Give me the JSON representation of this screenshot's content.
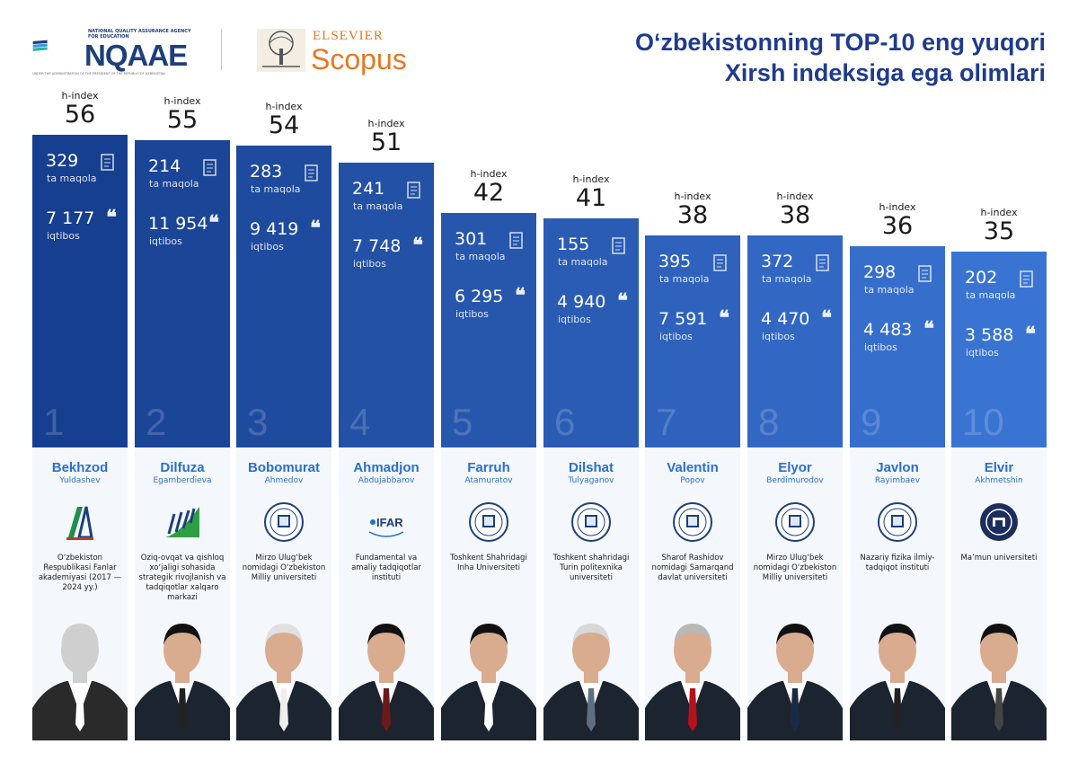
{
  "header": {
    "nqaae_small": "NATIONAL QUALITY ASSURANCE AGENCY FOR EDUCATION",
    "nqaae_name": "NQAAE",
    "nqaae_under": "UNDER THE ADMINISTRATION OF THE PRESIDENT OF THE REPUBLIC OF UZBEKISTAN",
    "elsevier": "ELSEVIER",
    "scopus": "Scopus",
    "title_line1": "O‘zbekistonning TOP-10 eng yuqori",
    "title_line2": "Xirsh indeksiga ega olimlari"
  },
  "labels": {
    "hindex": "h-index",
    "articles": "ta maqola",
    "citations": "iqtibos"
  },
  "colors": {
    "bar_dark": "#173f8f",
    "bar_light": "#3a74d2",
    "name_blue": "#2b70c9",
    "title_blue": "#1f3b8a",
    "card_bg": "#f4f7fb"
  },
  "chart_data": {
    "type": "bar",
    "title": "O‘zbekistonning TOP-10 eng yuqori Xirsh indeksiga ega olimlari",
    "categories": [
      "1",
      "2",
      "3",
      "4",
      "5",
      "6",
      "7",
      "8",
      "9",
      "10"
    ],
    "series": [
      {
        "name": "h-index",
        "values": [
          56,
          55,
          54,
          51,
          42,
          41,
          38,
          38,
          36,
          35
        ]
      }
    ],
    "ylim": [
      0,
      56
    ],
    "grid": false,
    "xlabel": "",
    "ylabel": ""
  },
  "scientists": [
    {
      "rank": "1",
      "hindex": "56",
      "articles": "329",
      "citations": "7 177",
      "first": "Bekhzod",
      "last": "Yuldashev",
      "inst": "O‘zbekiston Respublikasi Fanlar akademiyasi (2017 — 2024 yy.)",
      "emblem": "fa-academy-icon"
    },
    {
      "rank": "2",
      "hindex": "55",
      "articles": "214",
      "citations": "11 954",
      "first": "Dilfuza",
      "last": "Egamberdieva",
      "inst": "Oziq-ovqat va qishloq xo‘jaligi sohasida strategik rivojlanish va tadqiqotlar xalqaro markazi",
      "emblem": "agro-center-icon"
    },
    {
      "rank": "3",
      "hindex": "54",
      "articles": "283",
      "citations": "9 419",
      "first": "Bobomurat",
      "last": "Ahmedov",
      "inst": "Mirzo Ulug‘bek nomidagi O‘zbekiston Milliy universiteti",
      "emblem": "university-seal-icon"
    },
    {
      "rank": "4",
      "hindex": "51",
      "articles": "241",
      "citations": "7 748",
      "first": "Ahmadjon",
      "last": "Abdujabbarov",
      "inst": "Fundamental va amaliy tadqiqotlar instituti",
      "emblem": "ifar-icon"
    },
    {
      "rank": "5",
      "hindex": "42",
      "articles": "301",
      "citations": "6 295",
      "first": "Farruh",
      "last": "Atamuratov",
      "inst": "Toshkent Shahridagi Inha Universiteti",
      "emblem": "inha-seal-icon"
    },
    {
      "rank": "6",
      "hindex": "41",
      "articles": "155",
      "citations": "4 940",
      "first": "Dilshat",
      "last": "Tulyaganov",
      "inst": "Toshkent shahridagi Turin politexnika universiteti",
      "emblem": "turin-seal-icon"
    },
    {
      "rank": "7",
      "hindex": "38",
      "articles": "395",
      "citations": "7 591",
      "first": "Valentin",
      "last": "Popov",
      "inst": "Sharof Rashidov nomidagi Samarqand davlat universiteti",
      "emblem": "samarkand-seal-icon"
    },
    {
      "rank": "8",
      "hindex": "38",
      "articles": "372",
      "citations": "4 470",
      "first": "Elyor",
      "last": "Berdimurodov",
      "inst": "Mirzo Ulug‘bek nomidagi O‘zbekiston Milliy universiteti",
      "emblem": "university-seal-icon"
    },
    {
      "rank": "9",
      "hindex": "36",
      "articles": "298",
      "citations": "4 483",
      "first": "Javlon",
      "last": "Rayimbaev",
      "inst": "Nazariy fizika ilmiy-tadqiqot instituti",
      "emblem": "physics-seal-icon"
    },
    {
      "rank": "10",
      "hindex": "35",
      "articles": "202",
      "citations": "3 588",
      "first": "Elvir",
      "last": "Akhmetshin",
      "inst": "Ma’mun universiteti",
      "emblem": "mamun-seal-icon"
    }
  ]
}
